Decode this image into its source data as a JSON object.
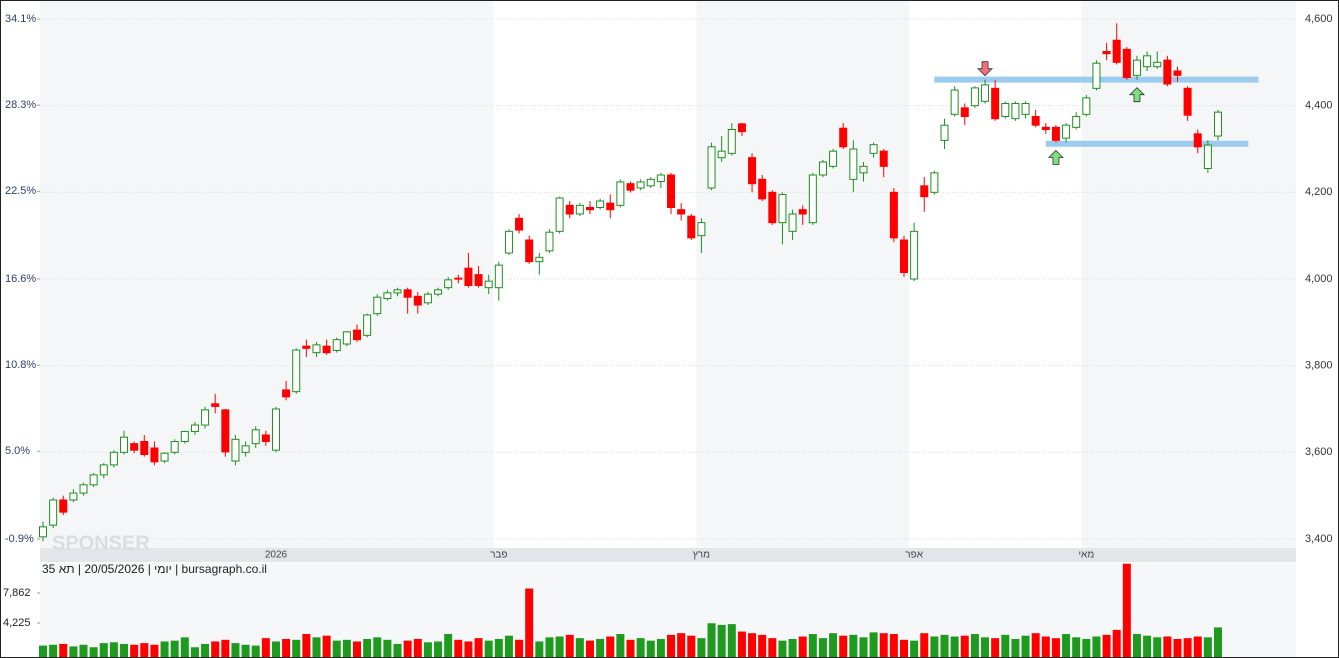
{
  "chart_data": {
    "type": "candlestick",
    "categories": [
      null,
      null,
      null,
      null,
      null,
      null,
      null,
      null,
      null,
      null,
      null,
      null,
      null,
      null,
      null,
      null,
      null,
      null,
      null,
      null,
      null,
      null,
      null,
      "2026",
      null,
      null,
      null,
      null,
      null,
      null,
      null,
      null,
      null,
      null,
      null,
      null,
      null,
      null,
      null,
      null,
      null,
      null,
      null,
      null,
      null,
      "פבר",
      null,
      null,
      null,
      null,
      null,
      null,
      null,
      null,
      null,
      null,
      null,
      null,
      null,
      null,
      null,
      null,
      null,
      null,
      null,
      "מרץ",
      null,
      null,
      null,
      null,
      null,
      null,
      null,
      null,
      null,
      null,
      null,
      null,
      null,
      null,
      null,
      null,
      null,
      null,
      null,
      null,
      "אפר",
      null,
      null,
      null,
      null,
      null,
      null,
      null,
      null,
      null,
      null,
      null,
      null,
      null,
      null,
      null,
      null,
      "מאי",
      null,
      null,
      null,
      null,
      null,
      null,
      null,
      null,
      null,
      null,
      null,
      null,
      null
    ],
    "open": [
      3405,
      3432,
      3490,
      3490,
      3506,
      3525,
      3548,
      3571,
      3600,
      3620,
      3625,
      3610,
      3580,
      3600,
      3625,
      3648,
      3663,
      3712,
      3698,
      3580,
      3600,
      3620,
      3640,
      3605,
      3744,
      3740,
      3845,
      3830,
      3845,
      3835,
      3850,
      3882,
      3870,
      3920,
      3955,
      3968,
      3975,
      3960,
      3945,
      3965,
      3980,
      4002,
      4025,
      4010,
      3980,
      3980,
      4060,
      4140,
      4090,
      4040,
      4065,
      4110,
      4170,
      4150,
      4165,
      4165,
      4175,
      4170,
      4220,
      4210,
      4215,
      4225,
      4240,
      4160,
      4145,
      4100,
      4210,
      4280,
      4290,
      4358,
      4280,
      4230,
      4200,
      4130,
      4110,
      4160,
      4130,
      4240,
      4260,
      4348,
      4230,
      4245,
      4290,
      4295,
      4200,
      4090,
      4000,
      4215,
      4200,
      4320,
      4380,
      4395,
      4400,
      4410,
      4440,
      4375,
      4370,
      4380,
      4375,
      4350,
      4350,
      4325,
      4350,
      4380,
      4440,
      4525,
      4551,
      4530,
      4470,
      4490,
      4490,
      4505,
      4480,
      4440,
      4335,
      4255,
      4330
    ],
    "high": [
      3440,
      3495,
      3500,
      3515,
      3530,
      3552,
      3575,
      3605,
      3650,
      3625,
      3640,
      3625,
      3600,
      3630,
      3650,
      3670,
      3705,
      3735,
      3700,
      3640,
      3625,
      3660,
      3650,
      3705,
      3765,
      3840,
      3860,
      3855,
      3860,
      3865,
      3880,
      3895,
      3920,
      3965,
      3975,
      3980,
      3980,
      3970,
      3970,
      3980,
      4005,
      4010,
      4060,
      4030,
      4010,
      4040,
      4115,
      4150,
      4100,
      4060,
      4115,
      4190,
      4180,
      4175,
      4180,
      4185,
      4195,
      4230,
      4225,
      4230,
      4235,
      4245,
      4245,
      4175,
      4150,
      4140,
      4315,
      4330,
      4360,
      4360,
      4290,
      4240,
      4205,
      4200,
      4160,
      4170,
      4245,
      4275,
      4300,
      4360,
      4320,
      4270,
      4315,
      4300,
      4210,
      4100,
      4130,
      4235,
      4250,
      4370,
      4445,
      4405,
      4445,
      4460,
      4460,
      4410,
      4410,
      4410,
      4390,
      4360,
      4355,
      4360,
      4385,
      4425,
      4505,
      4545,
      4590,
      4535,
      4515,
      4525,
      4525,
      4515,
      4490,
      4445,
      4345,
      4320,
      4390
    ],
    "low": [
      3395,
      3425,
      3455,
      3485,
      3500,
      3520,
      3540,
      3565,
      3595,
      3598,
      3590,
      3570,
      3575,
      3595,
      3620,
      3640,
      3655,
      3690,
      3590,
      3570,
      3590,
      3610,
      3615,
      3600,
      3720,
      3735,
      3820,
      3820,
      3825,
      3830,
      3845,
      3855,
      3865,
      3915,
      3950,
      3960,
      3920,
      3920,
      3940,
      3960,
      3975,
      3990,
      3980,
      3980,
      3965,
      3950,
      4055,
      4105,
      4035,
      4010,
      4060,
      4105,
      4140,
      4145,
      4150,
      4160,
      4140,
      4165,
      4200,
      4205,
      4210,
      4210,
      4150,
      4135,
      4090,
      4060,
      4205,
      4270,
      4285,
      4330,
      4200,
      4180,
      4125,
      4080,
      4090,
      4125,
      4125,
      4235,
      4255,
      4300,
      4200,
      4225,
      4280,
      4235,
      4085,
      4005,
      3995,
      4155,
      4195,
      4300,
      4375,
      4355,
      4395,
      4405,
      4365,
      4370,
      4365,
      4370,
      4350,
      4335,
      4315,
      4315,
      4345,
      4375,
      4435,
      4505,
      4495,
      4460,
      4460,
      4480,
      4485,
      4445,
      4455,
      4365,
      4290,
      4245,
      4320
    ],
    "close": [
      3428,
      3490,
      3462,
      3506,
      3525,
      3548,
      3571,
      3600,
      3635,
      3605,
      3595,
      3578,
      3598,
      3625,
      3648,
      3663,
      3698,
      3706,
      3601,
      3630,
      3615,
      3652,
      3625,
      3700,
      3728,
      3836,
      3840,
      3848,
      3830,
      3860,
      3878,
      3860,
      3917,
      3958,
      3968,
      3975,
      3958,
      3940,
      3965,
      3975,
      3998,
      4000,
      3985,
      3985,
      3995,
      4032,
      4110,
      4113,
      4040,
      4050,
      4108,
      4187,
      4150,
      4170,
      4160,
      4180,
      4160,
      4224,
      4205,
      4224,
      4230,
      4240,
      4165,
      4150,
      4095,
      4130,
      4305,
      4295,
      4345,
      4340,
      4220,
      4185,
      4130,
      4195,
      4150,
      4150,
      4240,
      4270,
      4295,
      4305,
      4300,
      4260,
      4310,
      4260,
      4095,
      4015,
      4110,
      4190,
      4245,
      4355,
      4436,
      4375,
      4441,
      4448,
      4370,
      4405,
      4405,
      4405,
      4355,
      4345,
      4320,
      4355,
      4375,
      4418,
      4498,
      4520,
      4500,
      4465,
      4505,
      4515,
      4500,
      4450,
      4470,
      4378,
      4305,
      4309,
      4385
    ],
    "up_color": "#1f8f1f",
    "down_color": "#ff0000",
    "ylim": [
      3400,
      4600
    ],
    "yticks": [
      {
        "value": 3400,
        "label": "3,400"
      },
      {
        "value": 3600,
        "label": "3,600"
      },
      {
        "value": 3800,
        "label": "3,800"
      },
      {
        "value": 4000,
        "label": "4,000"
      },
      {
        "value": 4200,
        "label": "4,200"
      },
      {
        "value": 4400,
        "label": "4,400"
      },
      {
        "value": 4600,
        "label": "4,600"
      }
    ],
    "y2lim": [
      -0.9,
      34.1
    ],
    "y2ticks": [
      {
        "value": -0.9,
        "label": "-0.9%"
      },
      {
        "value": 5.0,
        "label": "5.0%"
      },
      {
        "value": 10.8,
        "label": "10.8%"
      },
      {
        "value": 16.6,
        "label": "16.6%"
      },
      {
        "value": 22.5,
        "label": "22.5%"
      },
      {
        "value": 28.3,
        "label": "28.3%"
      },
      {
        "value": 34.1,
        "label": "34.1%"
      }
    ],
    "grid": true,
    "volume": {
      "values": [
        1500,
        1600,
        1700,
        1400,
        1600,
        1300,
        1800,
        1900,
        1700,
        1600,
        1800,
        1600,
        2000,
        2100,
        2500,
        1300,
        1700,
        2000,
        2200,
        1800,
        1600,
        1500,
        2400,
        2000,
        2300,
        2200,
        2900,
        2500,
        2700,
        2100,
        2200,
        2000,
        2300,
        2500,
        2200,
        1700,
        2100,
        2300,
        1900,
        2000,
        2900,
        2200,
        2000,
        2400,
        2100,
        2300,
        2700,
        2200,
        8400,
        2000,
        2500,
        2600,
        2800,
        2400,
        2100,
        2300,
        2600,
        2900,
        2200,
        2400,
        2100,
        2300,
        2800,
        3000,
        2700,
        2400,
        4200,
        4000,
        4100,
        3200,
        3000,
        2800,
        2400,
        2100,
        2300,
        2600,
        2900,
        2400,
        3000,
        2700,
        2800,
        2500,
        3100,
        3000,
        2900,
        2200,
        2100,
        3000,
        2600,
        2800,
        2600,
        2700,
        2900,
        2500,
        2400,
        2800,
        2300,
        2700,
        3000,
        2600,
        2400,
        2900,
        2500,
        2300,
        2600,
        2800,
        3400,
        11400,
        2900,
        2700,
        2500,
        2600,
        2300,
        2400,
        2600,
        2500,
        3700
      ],
      "ylim": [
        0,
        11490
      ],
      "yticks": [
        {
          "value": 4225,
          "label": "4,225"
        },
        {
          "value": 7862,
          "label": "7,862"
        }
      ],
      "up_color": "#1e9b1e",
      "down_color": "#ff0000"
    },
    "hlines": [
      {
        "value": 4460,
        "start": 88,
        "end": 120,
        "color": "#9ccbf0"
      },
      {
        "value": 4312,
        "start": 99,
        "end": 119,
        "color": "#9ccbf0"
      }
    ],
    "signals": [
      {
        "index": 93,
        "direction": "down",
        "color": "#f2707e"
      },
      {
        "index": 100,
        "direction": "up",
        "color": "#7fe07f"
      },
      {
        "index": 108,
        "direction": "up",
        "color": "#7fe07f"
      }
    ],
    "info_label": "יומי | 20/05/2026 | תא 35 | bursagraph.co.il",
    "watermark": "SPONSER"
  }
}
